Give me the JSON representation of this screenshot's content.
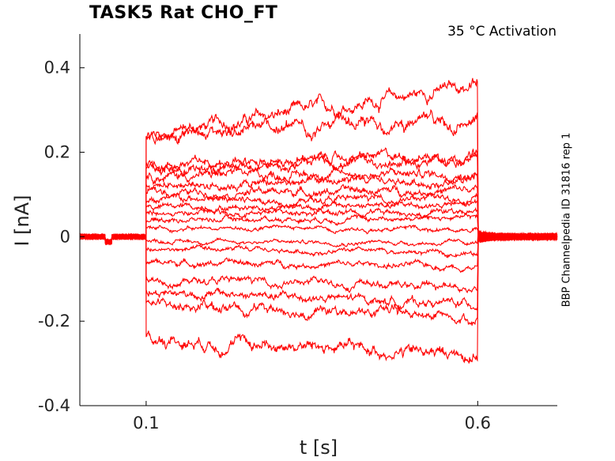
{
  "annotation": "35 °C  Activation",
  "side_label": "BBP Channelpedia ID 31816 rep 1",
  "chart_data": {
    "type": "line",
    "title": "TASK5  Rat  CHO_FT",
    "xlabel": "t [s]",
    "ylabel": "I [nA]",
    "xlim": [
      0.0,
      0.72
    ],
    "ylim": [
      -0.4,
      0.48
    ],
    "xticks": [
      0.1,
      0.6
    ],
    "xtick_labels": [
      "0.1",
      "0.6"
    ],
    "yticks": [
      0.4,
      0.2,
      0,
      -0.2,
      -0.4
    ],
    "ytick_labels": [
      "0.4",
      "0.2",
      "0",
      "-0.2",
      "-0.4"
    ],
    "grid": false,
    "line_color": "#ff0000",
    "pulse": {
      "start": 0.1,
      "end": 0.6
    },
    "series_levels": [
      {
        "start": 0.24,
        "end": 0.36
      },
      {
        "start": 0.245,
        "end": 0.27
      },
      {
        "start": 0.17,
        "end": 0.195
      },
      {
        "start": 0.165,
        "end": 0.18
      },
      {
        "start": 0.145,
        "end": 0.15
      },
      {
        "start": 0.125,
        "end": 0.13
      },
      {
        "start": 0.105,
        "end": 0.11
      },
      {
        "start": 0.085,
        "end": 0.09
      },
      {
        "start": 0.07,
        "end": 0.075
      },
      {
        "start": 0.055,
        "end": 0.06
      },
      {
        "start": 0.04,
        "end": 0.045
      },
      {
        "start": 0.02,
        "end": 0.02
      },
      {
        "start": -0.01,
        "end": -0.015
      },
      {
        "start": -0.03,
        "end": -0.04
      },
      {
        "start": -0.06,
        "end": -0.07
      },
      {
        "start": -0.1,
        "end": -0.12
      },
      {
        "start": -0.13,
        "end": -0.16
      },
      {
        "start": -0.16,
        "end": -0.19
      },
      {
        "start": -0.24,
        "end": -0.28
      }
    ]
  }
}
